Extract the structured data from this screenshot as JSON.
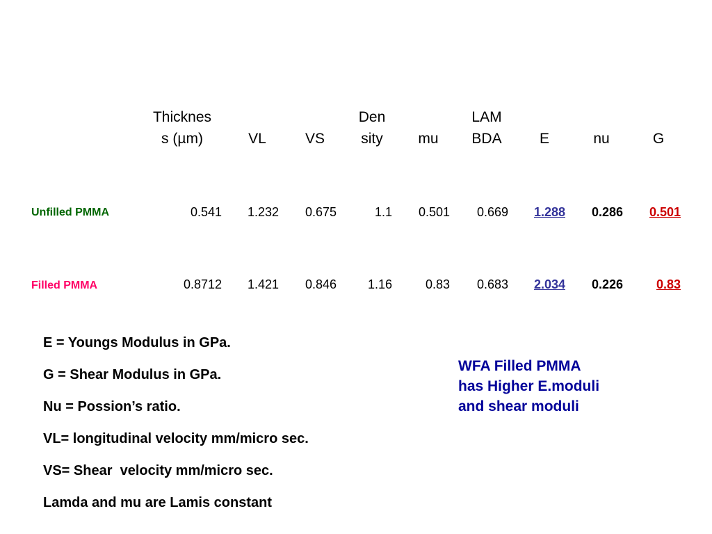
{
  "table": {
    "headers": [
      {
        "line1": "Thicknes",
        "line2": "s (µm)"
      },
      {
        "line1": "",
        "line2": "VL"
      },
      {
        "line1": "",
        "line2": "VS"
      },
      {
        "line1": "Den",
        "line2": "sity"
      },
      {
        "line1": "",
        "line2": "mu"
      },
      {
        "line1": "LAM",
        "line2": "BDA"
      },
      {
        "line1": "",
        "line2": "E"
      },
      {
        "line1": "",
        "line2": "nu"
      },
      {
        "line1": "",
        "line2": "G"
      }
    ],
    "rows": [
      {
        "label": "Unfilled PMMA",
        "label_color": "#006600",
        "values": [
          "0.541",
          "1.232",
          "0.675",
          "1.1",
          "0.501",
          "0.669",
          "1.288",
          "0.286",
          "0.501"
        ]
      },
      {
        "label": "Filled PMMA",
        "label_color": "#ff0066",
        "values": [
          "0.8712",
          "1.421",
          "0.846",
          "1.16",
          "0.83",
          "0.683",
          "2.034",
          "0.226",
          "0.83"
        ]
      }
    ]
  },
  "notes": [
    "E = Youngs Modulus in GPa.",
    "G = Shear Modulus in GPa.",
    "Nu = Possion’s ratio.",
    "VL= longitudinal velocity mm/micro sec.",
    "VS= Shear  velocity mm/micro sec.",
    "Lamda and mu are Lamis constant"
  ],
  "callout": {
    "line1": "WFA Filled PMMA",
    "line2": "has Higher E.moduli",
    "line3": "and shear moduli"
  }
}
